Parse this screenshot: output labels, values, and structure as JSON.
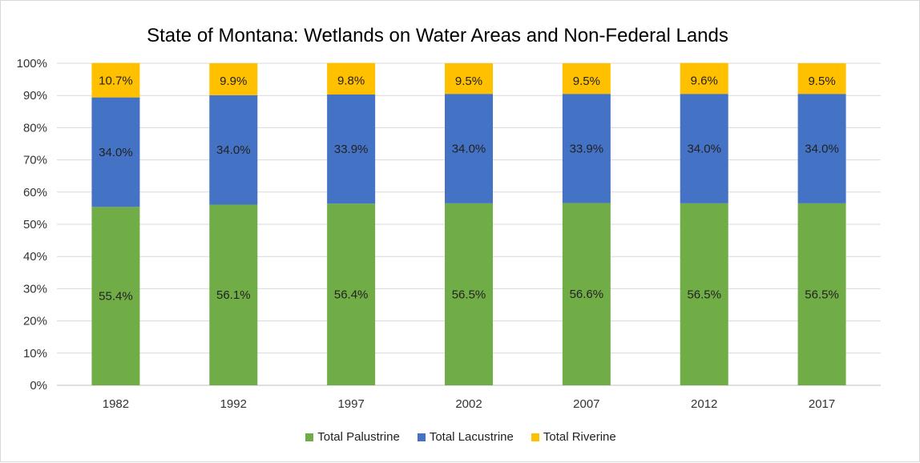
{
  "chart_data": {
    "type": "bar",
    "stacked": true,
    "percent_stacked": true,
    "title": "State of Montana: Wetlands on Water Areas and Non-Federal Lands",
    "categories": [
      "1982",
      "1992",
      "1997",
      "2002",
      "2007",
      "2012",
      "2017"
    ],
    "series": [
      {
        "name": "Total Palustrine",
        "color": "#70ad47",
        "values": [
          55.4,
          56.1,
          56.4,
          56.5,
          56.6,
          56.5,
          56.5
        ],
        "labels": [
          "55.4%",
          "56.1%",
          "56.4%",
          "56.5%",
          "56.6%",
          "56.5%",
          "56.5%"
        ]
      },
      {
        "name": "Total Lacustrine",
        "color": "#4472c4",
        "values": [
          34.0,
          34.0,
          33.9,
          34.0,
          33.9,
          34.0,
          34.0
        ],
        "labels": [
          "34.0%",
          "34.0%",
          "33.9%",
          "34.0%",
          "33.9%",
          "34.0%",
          "34.0%"
        ]
      },
      {
        "name": "Total Riverine",
        "color": "#ffc000",
        "values": [
          10.7,
          9.9,
          9.8,
          9.5,
          9.5,
          9.6,
          9.5
        ],
        "labels": [
          "10.7%",
          "9.9%",
          "9.8%",
          "9.5%",
          "9.5%",
          "9.6%",
          "9.5%"
        ]
      }
    ],
    "ylim": [
      0,
      100
    ],
    "yticks": [
      0,
      10,
      20,
      30,
      40,
      50,
      60,
      70,
      80,
      90,
      100
    ],
    "ytick_labels": [
      "0%",
      "10%",
      "20%",
      "30%",
      "40%",
      "50%",
      "60%",
      "70%",
      "80%",
      "90%",
      "100%"
    ],
    "grid": true,
    "legend_position": "bottom"
  }
}
